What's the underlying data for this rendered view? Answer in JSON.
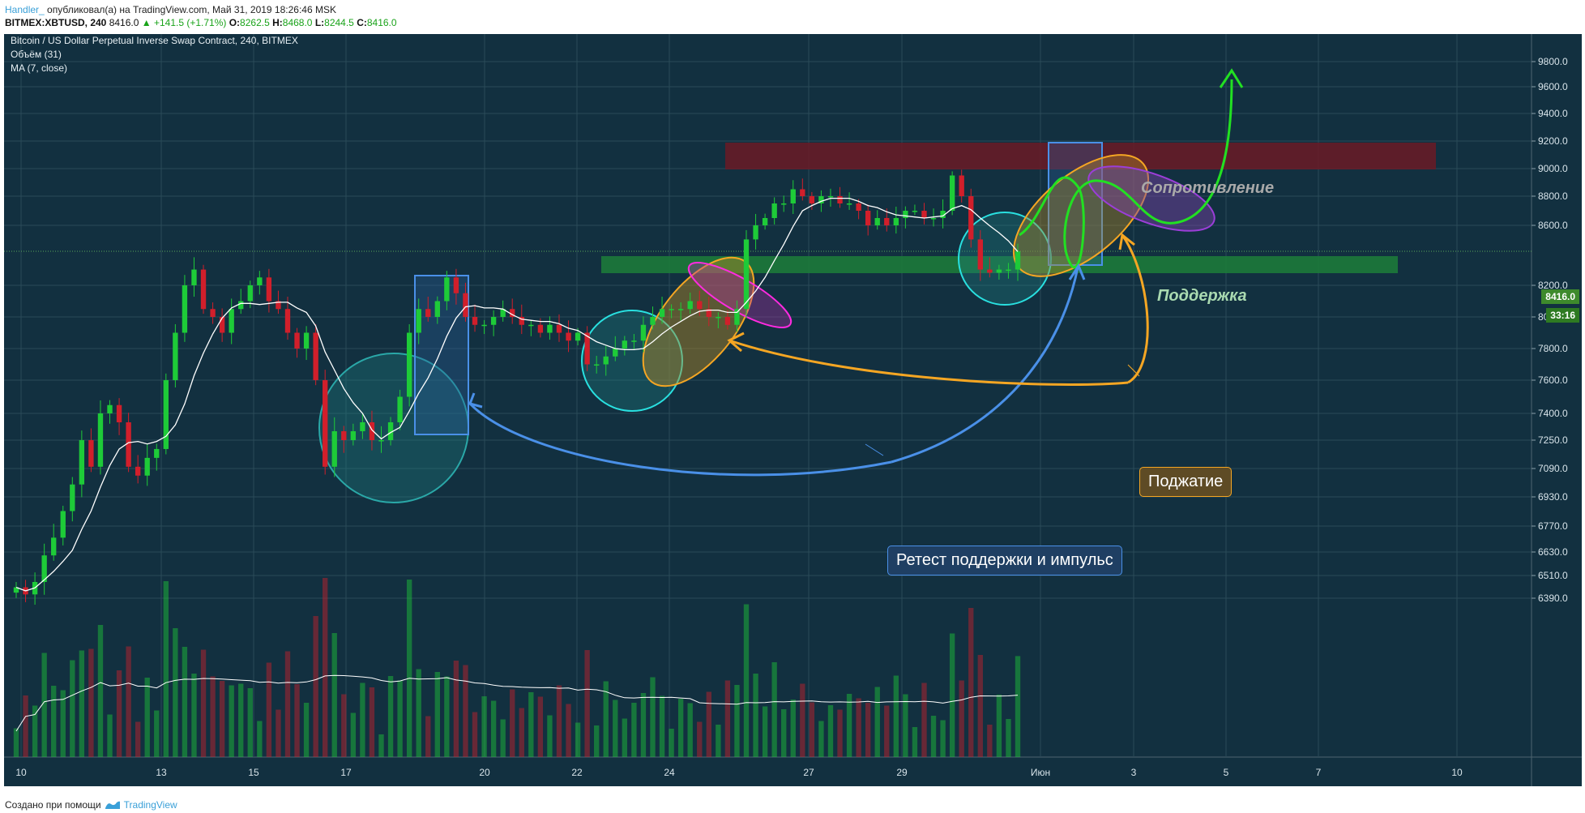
{
  "header": {
    "user": "Handler_",
    "published": "опубликовал(а) на TradingView.com, Май 31, 2019 18:26:46 MSK",
    "symbol_line_prefix": "BITMEX:XBTUSD, 240",
    "last": "8416.0",
    "change": "▲ +141.5 (+1.71%)",
    "o_label": "O:",
    "o_val": "8262.5",
    "h_label": "H:",
    "h_val": "8468.0",
    "l_label": "L:",
    "l_val": "8244.5",
    "c_label": "C:",
    "c_val": "8416.0"
  },
  "legend": {
    "title": "Bitcoin / US Dollar Perpetual Inverse Swap Contract, 240, BITMEX",
    "volume": "Объём (31)",
    "ma": "MA (7, close)"
  },
  "annotations": {
    "resistance": "Сопротивление",
    "support": "Поддержка",
    "squeeze": "Поджатие",
    "retest": "Ретест поддержки и импульс"
  },
  "price_tag": {
    "price": "8416.0",
    "timer": "33:16"
  },
  "footer": {
    "made_with": "Создано при помощи",
    "brand": "TradingView"
  },
  "colors": {
    "bg": "#123040",
    "up": "#1ecb38",
    "down": "#d11f2b",
    "resistance_zone": "#6b1a26",
    "support_zone": "#1d7a3a",
    "accent_green": "#22e022",
    "accent_blue": "#4a90e8",
    "accent_orange": "#f5a623"
  },
  "chart_data": {
    "type": "candlestick",
    "symbol": "BITMEX:XBTUSD",
    "interval": "240",
    "y_ticks": [
      "9800.0",
      "9600.0",
      "9400.0",
      "9200.0",
      "9000.0",
      "8800.0",
      "8600.0",
      "8200.0",
      "8000.0",
      "7800.0",
      "7600.0",
      "7400.0",
      "7250.0",
      "7090.0",
      "6930.0",
      "6770.0",
      "6630.0",
      "6510.0",
      "6390.0"
    ],
    "x_ticks": [
      "10",
      "13",
      "15",
      "17",
      "20",
      "22",
      "24",
      "27",
      "29",
      "Июн",
      "3",
      "5",
      "7",
      "10"
    ],
    "current_price": 8416.0,
    "zones": [
      {
        "name": "resistance",
        "low": 8920,
        "high": 9100
      },
      {
        "name": "support",
        "low": 8200,
        "high": 8310
      }
    ],
    "closes": [
      6420,
      6380,
      6450,
      6600,
      6700,
      6850,
      7000,
      7250,
      7100,
      7400,
      7450,
      7350,
      7100,
      7050,
      7150,
      7200,
      7600,
      7900,
      8200,
      8300,
      8050,
      8000,
      7900,
      8050,
      8100,
      8200,
      8250,
      8100,
      8050,
      7900,
      7800,
      7900,
      7600,
      7100,
      7300,
      7250,
      7300,
      7350,
      7250,
      7250,
      7350,
      7500,
      7900,
      8050,
      8000,
      8100,
      8250,
      8150,
      8000,
      7950,
      7950,
      8000,
      8050,
      8000,
      7950,
      7950,
      7900,
      7950,
      7900,
      7850,
      7900,
      7700,
      7700,
      7750,
      7800,
      7850,
      7850,
      7950,
      8000,
      8050,
      8050,
      8050,
      8100,
      8050,
      8000,
      8000,
      7950,
      8050,
      8500,
      8600,
      8650,
      8750,
      8750,
      8850,
      8800,
      8750,
      8800,
      8800,
      8750,
      8750,
      8700,
      8600,
      8650,
      8600,
      8650,
      8700,
      8700,
      8650,
      8650,
      8700,
      8950,
      8800,
      8500,
      8300,
      8280,
      8300,
      8300,
      8416
    ],
    "ma_period": 7
  }
}
